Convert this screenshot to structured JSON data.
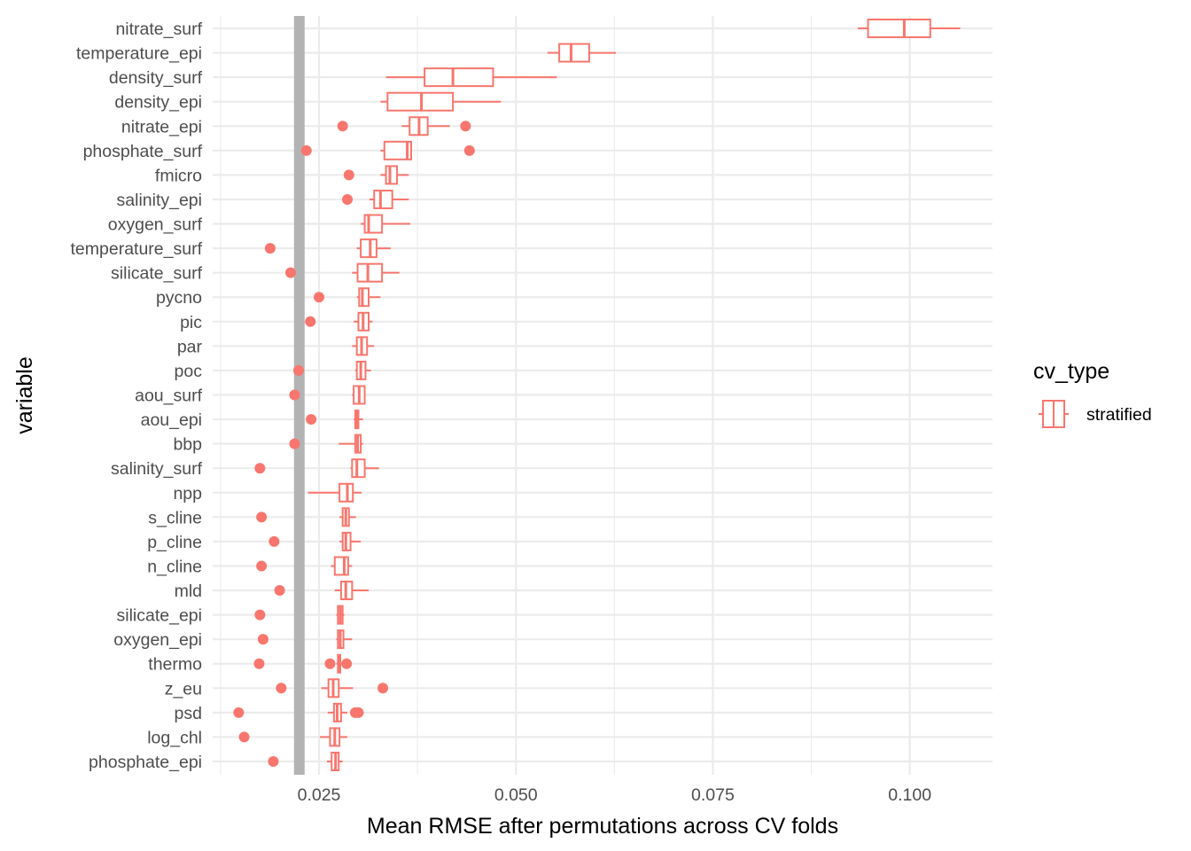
{
  "chart_data": {
    "type": "boxplot",
    "orientation": "horizontal",
    "title": "",
    "xlabel": "Mean RMSE after permutations across CV folds",
    "ylabel": "variable",
    "xlim": [
      0.0115,
      0.1105
    ],
    "xticks": [
      0.025,
      0.05,
      0.075,
      0.1
    ],
    "xtick_labels": [
      "0.025",
      "0.050",
      "0.075",
      "0.100"
    ],
    "grid": true,
    "reference_line": {
      "x": 0.0225,
      "color": "#b3b3b3"
    },
    "legend": {
      "title": "cv_type",
      "position": "right",
      "entries": [
        {
          "label": "stratified",
          "color": "#F8766D"
        }
      ]
    },
    "series": [
      {
        "name": "stratified",
        "color": "#F8766D"
      }
    ],
    "categories": [
      "nitrate_surf",
      "temperature_epi",
      "density_surf",
      "density_epi",
      "nitrate_epi",
      "phosphate_surf",
      "fmicro",
      "salinity_epi",
      "oxygen_surf",
      "temperature_surf",
      "silicate_surf",
      "pycno",
      "pic",
      "par",
      "poc",
      "aou_surf",
      "aou_epi",
      "bbp",
      "salinity_surf",
      "npp",
      "s_cline",
      "p_cline",
      "n_cline",
      "mld",
      "silicate_epi",
      "oxygen_epi",
      "thermo",
      "z_eu",
      "psd",
      "log_chl",
      "phosphate_epi"
    ],
    "boxes": [
      {
        "variable": "nitrate_surf",
        "min": 0.0934,
        "q1": 0.0947,
        "median": 0.0993,
        "q3": 0.1026,
        "max": 0.1064,
        "outliers": []
      },
      {
        "variable": "temperature_epi",
        "min": 0.054,
        "q1": 0.0555,
        "median": 0.057,
        "q3": 0.0593,
        "max": 0.0627,
        "outliers": []
      },
      {
        "variable": "density_surf",
        "min": 0.0335,
        "q1": 0.0384,
        "median": 0.042,
        "q3": 0.0471,
        "max": 0.0552,
        "outliers": []
      },
      {
        "variable": "density_epi",
        "min": 0.0328,
        "q1": 0.0337,
        "median": 0.038,
        "q3": 0.042,
        "max": 0.0481,
        "outliers": []
      },
      {
        "variable": "nitrate_epi",
        "min": 0.0355,
        "q1": 0.0365,
        "median": 0.0377,
        "q3": 0.0388,
        "max": 0.0416,
        "outliers": [
          0.028,
          0.0436
        ]
      },
      {
        "variable": "phosphate_surf",
        "min": 0.0328,
        "q1": 0.0333,
        "median": 0.0362,
        "q3": 0.0367,
        "max": 0.0367,
        "outliers": [
          0.0234,
          0.0441
        ]
      },
      {
        "variable": "fmicro",
        "min": 0.0328,
        "q1": 0.0335,
        "median": 0.034,
        "q3": 0.0349,
        "max": 0.0364,
        "outliers": [
          0.0288
        ]
      },
      {
        "variable": "salinity_epi",
        "min": 0.0314,
        "q1": 0.032,
        "median": 0.0328,
        "q3": 0.0343,
        "max": 0.0364,
        "outliers": [
          0.0286
        ]
      },
      {
        "variable": "oxygen_surf",
        "min": 0.0303,
        "q1": 0.0308,
        "median": 0.0313,
        "q3": 0.033,
        "max": 0.0366,
        "outliers": []
      },
      {
        "variable": "temperature_surf",
        "min": 0.0298,
        "q1": 0.0303,
        "median": 0.0315,
        "q3": 0.0323,
        "max": 0.0341,
        "outliers": [
          0.0188
        ]
      },
      {
        "variable": "silicate_surf",
        "min": 0.0292,
        "q1": 0.0299,
        "median": 0.0312,
        "q3": 0.033,
        "max": 0.0352,
        "outliers": [
          0.0214
        ]
      },
      {
        "variable": "pycno",
        "min": 0.0298,
        "q1": 0.0301,
        "median": 0.0305,
        "q3": 0.0313,
        "max": 0.0328,
        "outliers": [
          0.025
        ]
      },
      {
        "variable": "pic",
        "min": 0.0294,
        "q1": 0.03,
        "median": 0.0306,
        "q3": 0.0313,
        "max": 0.0318,
        "outliers": [
          0.0239
        ]
      },
      {
        "variable": "par",
        "min": 0.0292,
        "q1": 0.0298,
        "median": 0.0304,
        "q3": 0.0311,
        "max": 0.032,
        "outliers": []
      },
      {
        "variable": "poc",
        "min": 0.0296,
        "q1": 0.0298,
        "median": 0.0303,
        "q3": 0.0309,
        "max": 0.0316,
        "outliers": [
          0.0224
        ]
      },
      {
        "variable": "aou_surf",
        "min": 0.0292,
        "q1": 0.0294,
        "median": 0.0301,
        "q3": 0.0308,
        "max": 0.0308,
        "outliers": [
          0.0219
        ]
      },
      {
        "variable": "aou_epi",
        "min": 0.0294,
        "q1": 0.0296,
        "median": 0.0298,
        "q3": 0.03,
        "max": 0.0306,
        "outliers": [
          0.024
        ]
      },
      {
        "variable": "bbp",
        "min": 0.0275,
        "q1": 0.0296,
        "median": 0.0299,
        "q3": 0.0303,
        "max": 0.0306,
        "outliers": [
          0.0219
        ]
      },
      {
        "variable": "salinity_surf",
        "min": 0.029,
        "q1": 0.0292,
        "median": 0.0298,
        "q3": 0.0308,
        "max": 0.0326,
        "outliers": [
          0.0175
        ]
      },
      {
        "variable": "npp",
        "min": 0.0236,
        "q1": 0.0276,
        "median": 0.0286,
        "q3": 0.0293,
        "max": 0.0304,
        "outliers": []
      },
      {
        "variable": "s_cline",
        "min": 0.0276,
        "q1": 0.028,
        "median": 0.0284,
        "q3": 0.0288,
        "max": 0.0297,
        "outliers": [
          0.0177
        ]
      },
      {
        "variable": "p_cline",
        "min": 0.0276,
        "q1": 0.028,
        "median": 0.0284,
        "q3": 0.029,
        "max": 0.0303,
        "outliers": [
          0.0193
        ]
      },
      {
        "variable": "n_cline",
        "min": 0.0265,
        "q1": 0.027,
        "median": 0.0282,
        "q3": 0.0287,
        "max": 0.0292,
        "outliers": [
          0.0177
        ]
      },
      {
        "variable": "mld",
        "min": 0.027,
        "q1": 0.0278,
        "median": 0.0284,
        "q3": 0.0292,
        "max": 0.0313,
        "outliers": [
          0.02
        ]
      },
      {
        "variable": "silicate_epi",
        "min": 0.0272,
        "q1": 0.0274,
        "median": 0.0277,
        "q3": 0.028,
        "max": 0.0282,
        "outliers": [
          0.0175
        ]
      },
      {
        "variable": "oxygen_epi",
        "min": 0.0272,
        "q1": 0.0274,
        "median": 0.0277,
        "q3": 0.0281,
        "max": 0.0292,
        "outliers": [
          0.0179
        ]
      },
      {
        "variable": "thermo",
        "min": 0.0272,
        "q1": 0.0274,
        "median": 0.0276,
        "q3": 0.0277,
        "max": 0.0279,
        "outliers": [
          0.0174,
          0.0264,
          0.0285
        ]
      },
      {
        "variable": "z_eu",
        "min": 0.0253,
        "q1": 0.0262,
        "median": 0.0268,
        "q3": 0.0275,
        "max": 0.0293,
        "outliers": [
          0.0202,
          0.0331
        ]
      },
      {
        "variable": "psd",
        "min": 0.0261,
        "q1": 0.0269,
        "median": 0.0273,
        "q3": 0.0278,
        "max": 0.0286,
        "outliers": [
          0.0148,
          0.0296,
          0.03
        ]
      },
      {
        "variable": "log_chl",
        "min": 0.0251,
        "q1": 0.0264,
        "median": 0.027,
        "q3": 0.0276,
        "max": 0.0286,
        "outliers": [
          0.0155
        ]
      },
      {
        "variable": "phosphate_epi",
        "min": 0.026,
        "q1": 0.0266,
        "median": 0.0271,
        "q3": 0.0275,
        "max": 0.028,
        "outliers": [
          0.0192
        ]
      }
    ]
  }
}
